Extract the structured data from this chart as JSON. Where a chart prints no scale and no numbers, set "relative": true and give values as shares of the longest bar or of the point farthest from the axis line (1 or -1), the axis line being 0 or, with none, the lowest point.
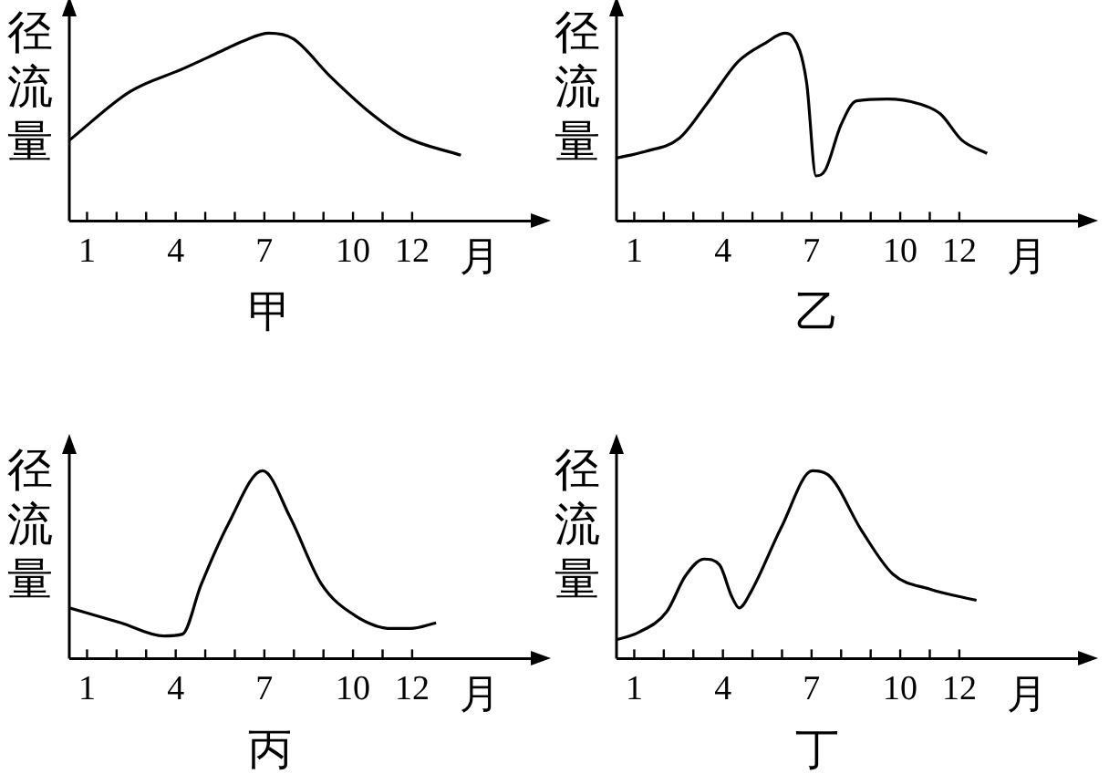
{
  "chart_data": [
    {
      "type": "line",
      "title": "甲",
      "xlabel": "月",
      "ylabel": "径流量",
      "relative": true,
      "marker": "none",
      "legend": false,
      "color": "#000000",
      "xlim": [
        0.4,
        16.2
      ],
      "xticks": [
        1,
        {
          "value": 2,
          "label": null
        },
        {
          "value": 3,
          "label": null
        },
        4,
        {
          "value": 5,
          "label": null
        },
        {
          "value": 6,
          "label": null
        },
        7,
        {
          "value": 8,
          "label": null
        },
        {
          "value": 9,
          "label": null
        },
        10,
        {
          "value": 11,
          "label": null
        },
        12
      ],
      "x": [
        0.4,
        2.46,
        4.23,
        5.48,
        6.31,
        7.15,
        7.98,
        9.23,
        10.48,
        11.73,
        13.65
      ],
      "values": [
        0.43,
        0.69,
        0.81,
        0.9,
        0.96,
        1,
        0.97,
        0.77,
        0.59,
        0.45,
        0.35
      ]
    },
    {
      "type": "line",
      "title": "乙",
      "xlabel": "月",
      "ylabel": "径流量",
      "relative": true,
      "marker": "none",
      "legend": false,
      "color": "#000000",
      "xlim": [
        0.4,
        16.2
      ],
      "xticks": [
        1,
        {
          "value": 2,
          "label": null
        },
        {
          "value": 3,
          "label": null
        },
        4,
        {
          "value": 5,
          "label": null
        },
        {
          "value": 6,
          "label": null
        },
        7,
        {
          "value": 8,
          "label": null
        },
        {
          "value": 9,
          "label": null
        },
        10,
        {
          "value": 11,
          "label": null
        },
        12
      ],
      "x": [
        0.4,
        1.36,
        2.52,
        3.46,
        4.52,
        5.46,
        6.09,
        6.37,
        6.83,
        7.15,
        7.46,
        7.99,
        8.52,
        9.57,
        10.62,
        11.36,
        12.09,
        12.94
      ],
      "values": [
        0.335,
        0.37,
        0.44,
        0.625,
        0.85,
        0.95,
        1,
        0.98,
        0.74,
        0.24,
        0.27,
        0.51,
        0.64,
        0.65,
        0.625,
        0.57,
        0.43,
        0.36
      ]
    },
    {
      "type": "line",
      "title": "丙",
      "xlabel": "月",
      "ylabel": "径流量",
      "relative": true,
      "marker": "none",
      "legend": false,
      "color": "#000000",
      "xlim": [
        0.4,
        16.2
      ],
      "xticks": [
        1,
        {
          "value": 2,
          "label": null
        },
        {
          "value": 3,
          "label": null
        },
        4,
        {
          "value": 5,
          "label": null
        },
        {
          "value": 6,
          "label": null
        },
        7,
        {
          "value": 8,
          "label": null
        },
        {
          "value": 9,
          "label": null
        },
        10,
        {
          "value": 11,
          "label": null
        },
        12
      ],
      "x": [
        0.4,
        2.15,
        3.6,
        4.23,
        4.85,
        5.79,
        6.94,
        7.88,
        8.92,
        10.06,
        11.31,
        11.94,
        12.81
      ],
      "values": [
        0.27,
        0.19,
        0.12,
        0.13,
        0.39,
        0.72,
        1,
        0.75,
        0.4,
        0.23,
        0.16,
        0.16,
        0.19
      ]
    },
    {
      "type": "line",
      "title": "丁",
      "xlabel": "月",
      "ylabel": "径流量",
      "relative": true,
      "marker": "none",
      "legend": false,
      "color": "#000000",
      "xlim": [
        0.4,
        16.2
      ],
      "xticks": [
        1,
        {
          "value": 2,
          "label": null
        },
        {
          "value": 3,
          "label": null
        },
        4,
        {
          "value": 5,
          "label": null
        },
        {
          "value": 6,
          "label": null
        },
        7,
        {
          "value": 8,
          "label": null
        },
        {
          "value": 9,
          "label": null
        },
        10,
        {
          "value": 11,
          "label": null
        },
        12
      ],
      "x": [
        0.4,
        1.15,
        2.1,
        2.73,
        3.36,
        3.88,
        4.3,
        4.55,
        4.93,
        5.98,
        7.03,
        7.55,
        8.7,
        9.75,
        11.0,
        12.58
      ],
      "values": [
        0.1,
        0.14,
        0.25,
        0.44,
        0.53,
        0.5,
        0.33,
        0.27,
        0.35,
        0.7,
        1,
        0.98,
        0.68,
        0.45,
        0.37,
        0.31
      ]
    }
  ]
}
